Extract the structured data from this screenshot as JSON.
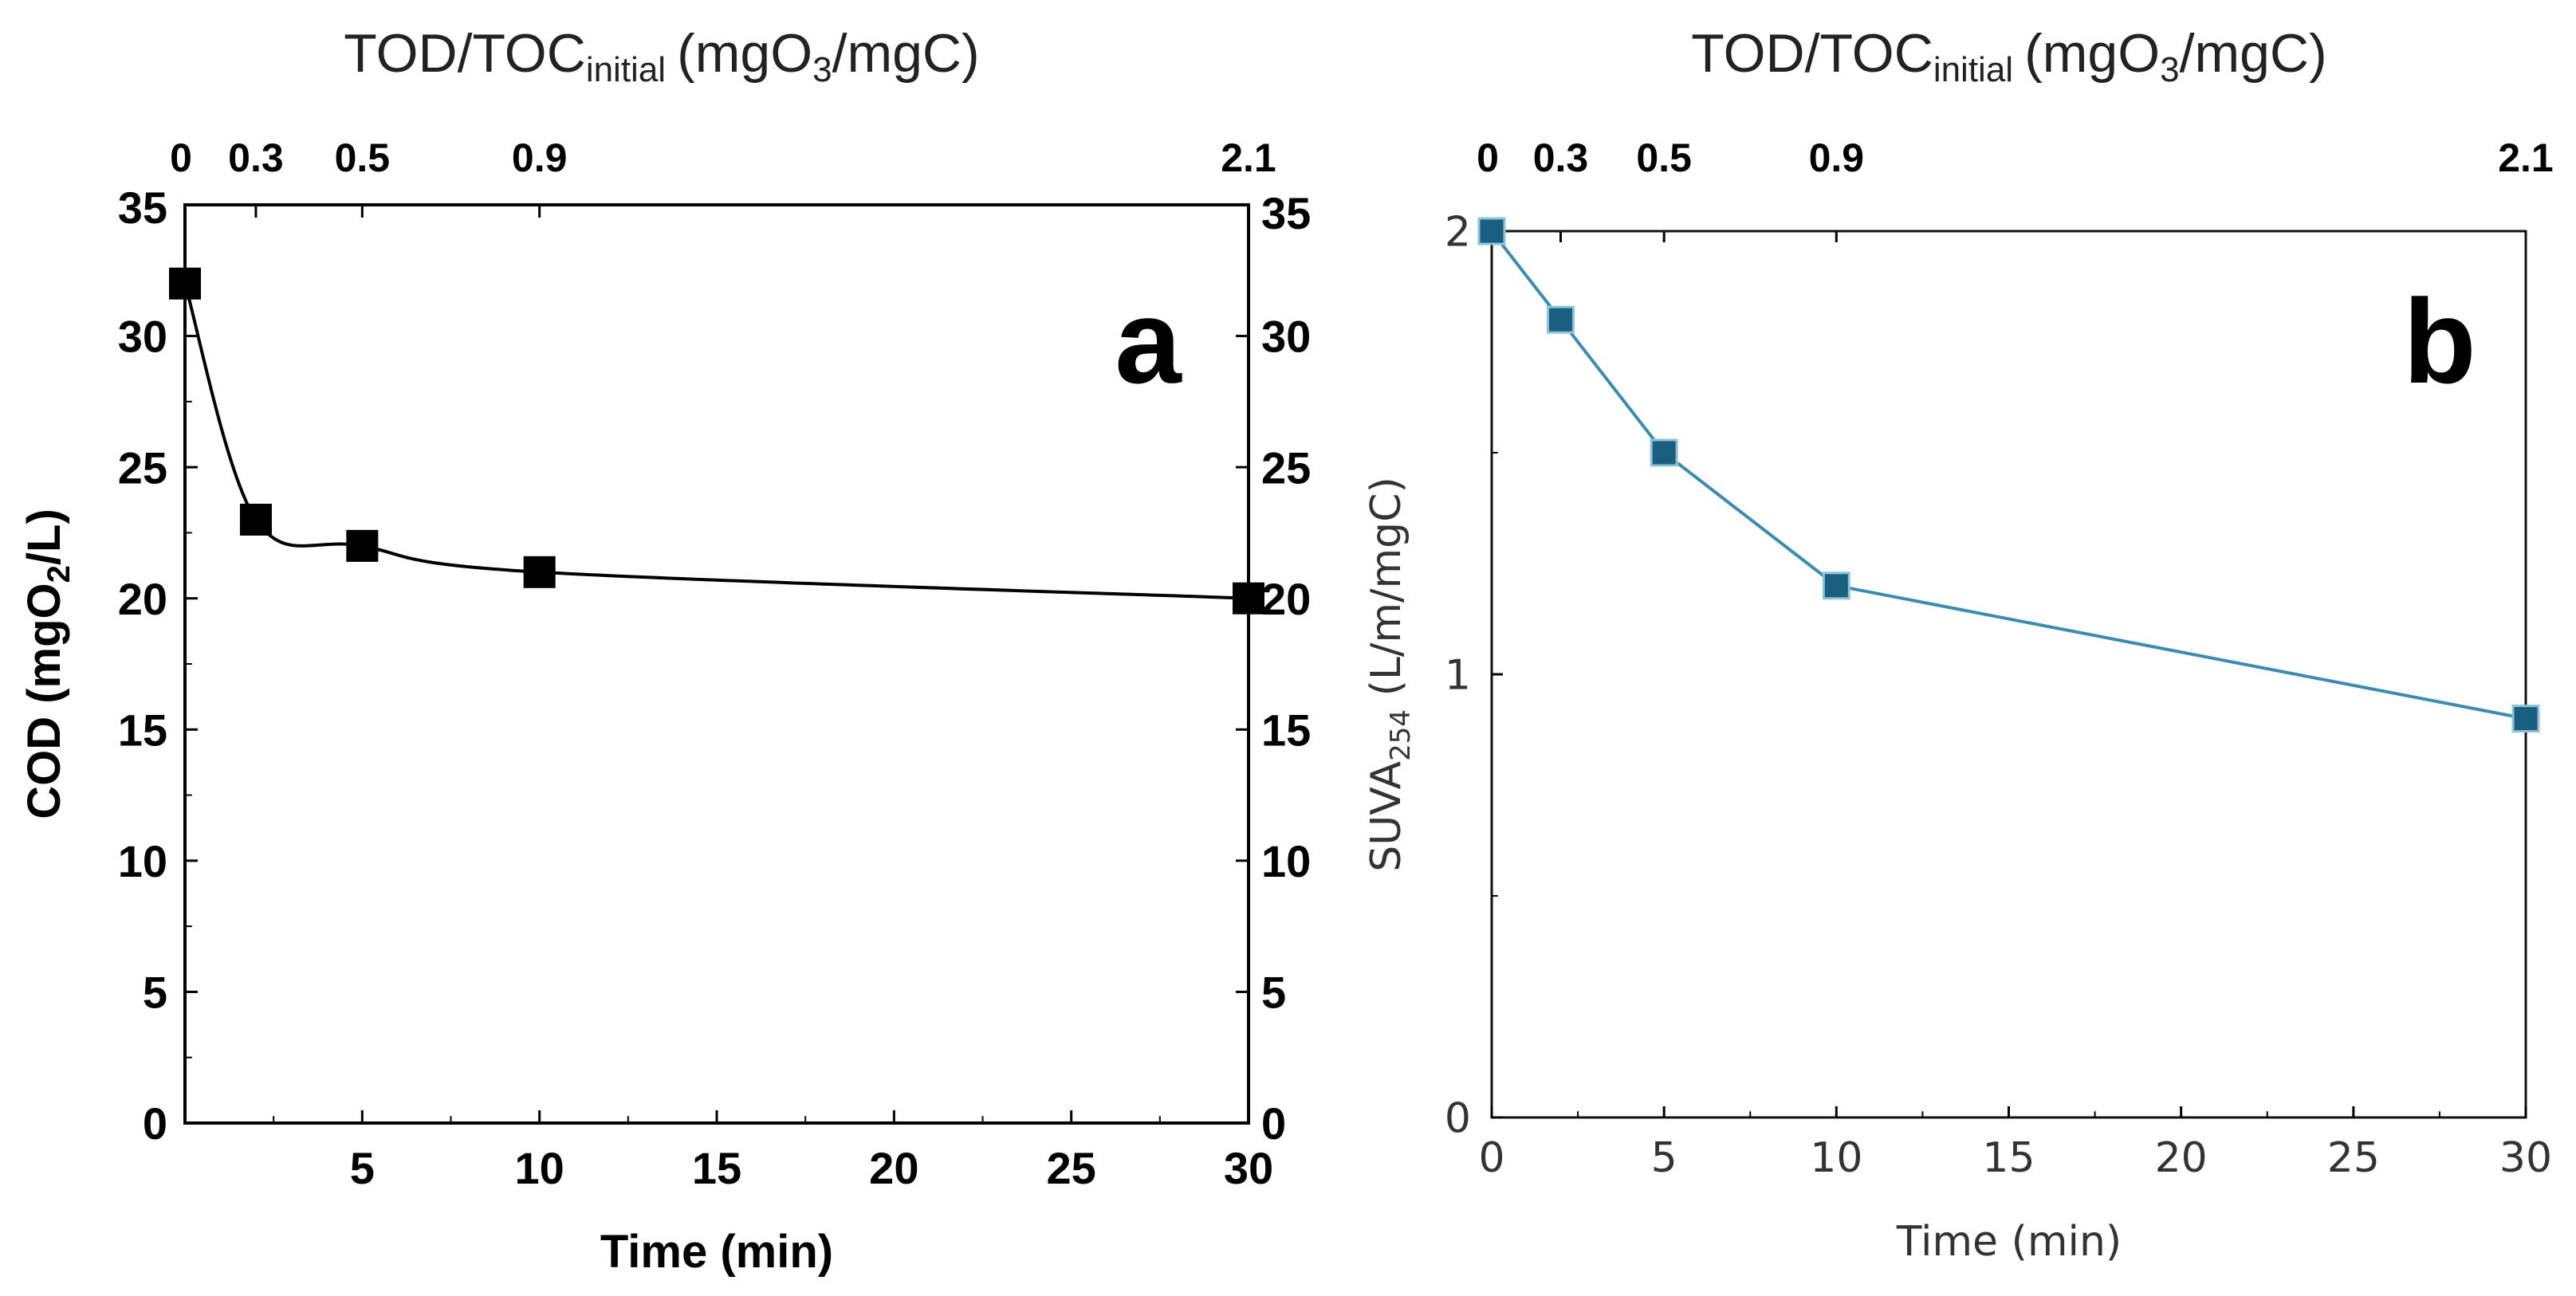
{
  "chart_data": [
    {
      "panel_label": "a",
      "type": "line",
      "style": "smooth",
      "color": "#000000",
      "top_title": "TOD/TOC",
      "top_title_sub": "initial",
      "top_title_unit": "(mgO",
      "top_title_unit_sub": "3",
      "top_title_unit_end": "/mgC)",
      "top_ticks": [
        "0",
        "0.3",
        "0.5",
        "0.9",
        "2.1"
      ],
      "top_tick_positions": [
        0,
        2,
        5,
        10,
        30
      ],
      "xlabel": "Time (min)",
      "ylabel_main": "COD (mgO",
      "ylabel_sub": "2",
      "ylabel_end": "/L)",
      "xlim": [
        0,
        30
      ],
      "ylim": [
        0,
        35
      ],
      "x_ticks": [
        "5",
        "10",
        "15",
        "20",
        "25",
        "30"
      ],
      "y_ticks": [
        "0",
        "5",
        "10",
        "15",
        "20",
        "25",
        "30",
        "35"
      ],
      "right_y_ticks": [
        "0",
        "5",
        "10",
        "15",
        "20",
        "25",
        "30",
        "35"
      ],
      "series": [
        {
          "name": "COD",
          "x": [
            0,
            2,
            5,
            10,
            30
          ],
          "y": [
            32,
            23,
            22,
            21,
            20
          ]
        }
      ]
    },
    {
      "panel_label": "b",
      "type": "line",
      "style": "straight",
      "color": "#1a5f80",
      "top_title": "TOD/TOC",
      "top_title_sub": "initial",
      "top_title_unit": "(mgO",
      "top_title_unit_sub": "3",
      "top_title_unit_end": "/mgC)",
      "top_ticks": [
        "0",
        "0.3",
        "0.5",
        "0.9",
        "2.1"
      ],
      "top_tick_positions": [
        0,
        2,
        5,
        10,
        30
      ],
      "xlabel": "Time (min)",
      "ylabel_main": "SUVA",
      "ylabel_sub": "254",
      "ylabel_end": " (L/m/mgC)",
      "xlim": [
        0,
        30
      ],
      "ylim": [
        0,
        2
      ],
      "x_ticks": [
        "0",
        "5",
        "10",
        "15",
        "20",
        "25",
        "30"
      ],
      "y_ticks": [
        "0",
        "1",
        "2"
      ],
      "series": [
        {
          "name": "SUVA254",
          "x": [
            0,
            2,
            5,
            10,
            30
          ],
          "y": [
            2.0,
            1.8,
            1.5,
            1.2,
            0.9
          ]
        }
      ]
    }
  ]
}
